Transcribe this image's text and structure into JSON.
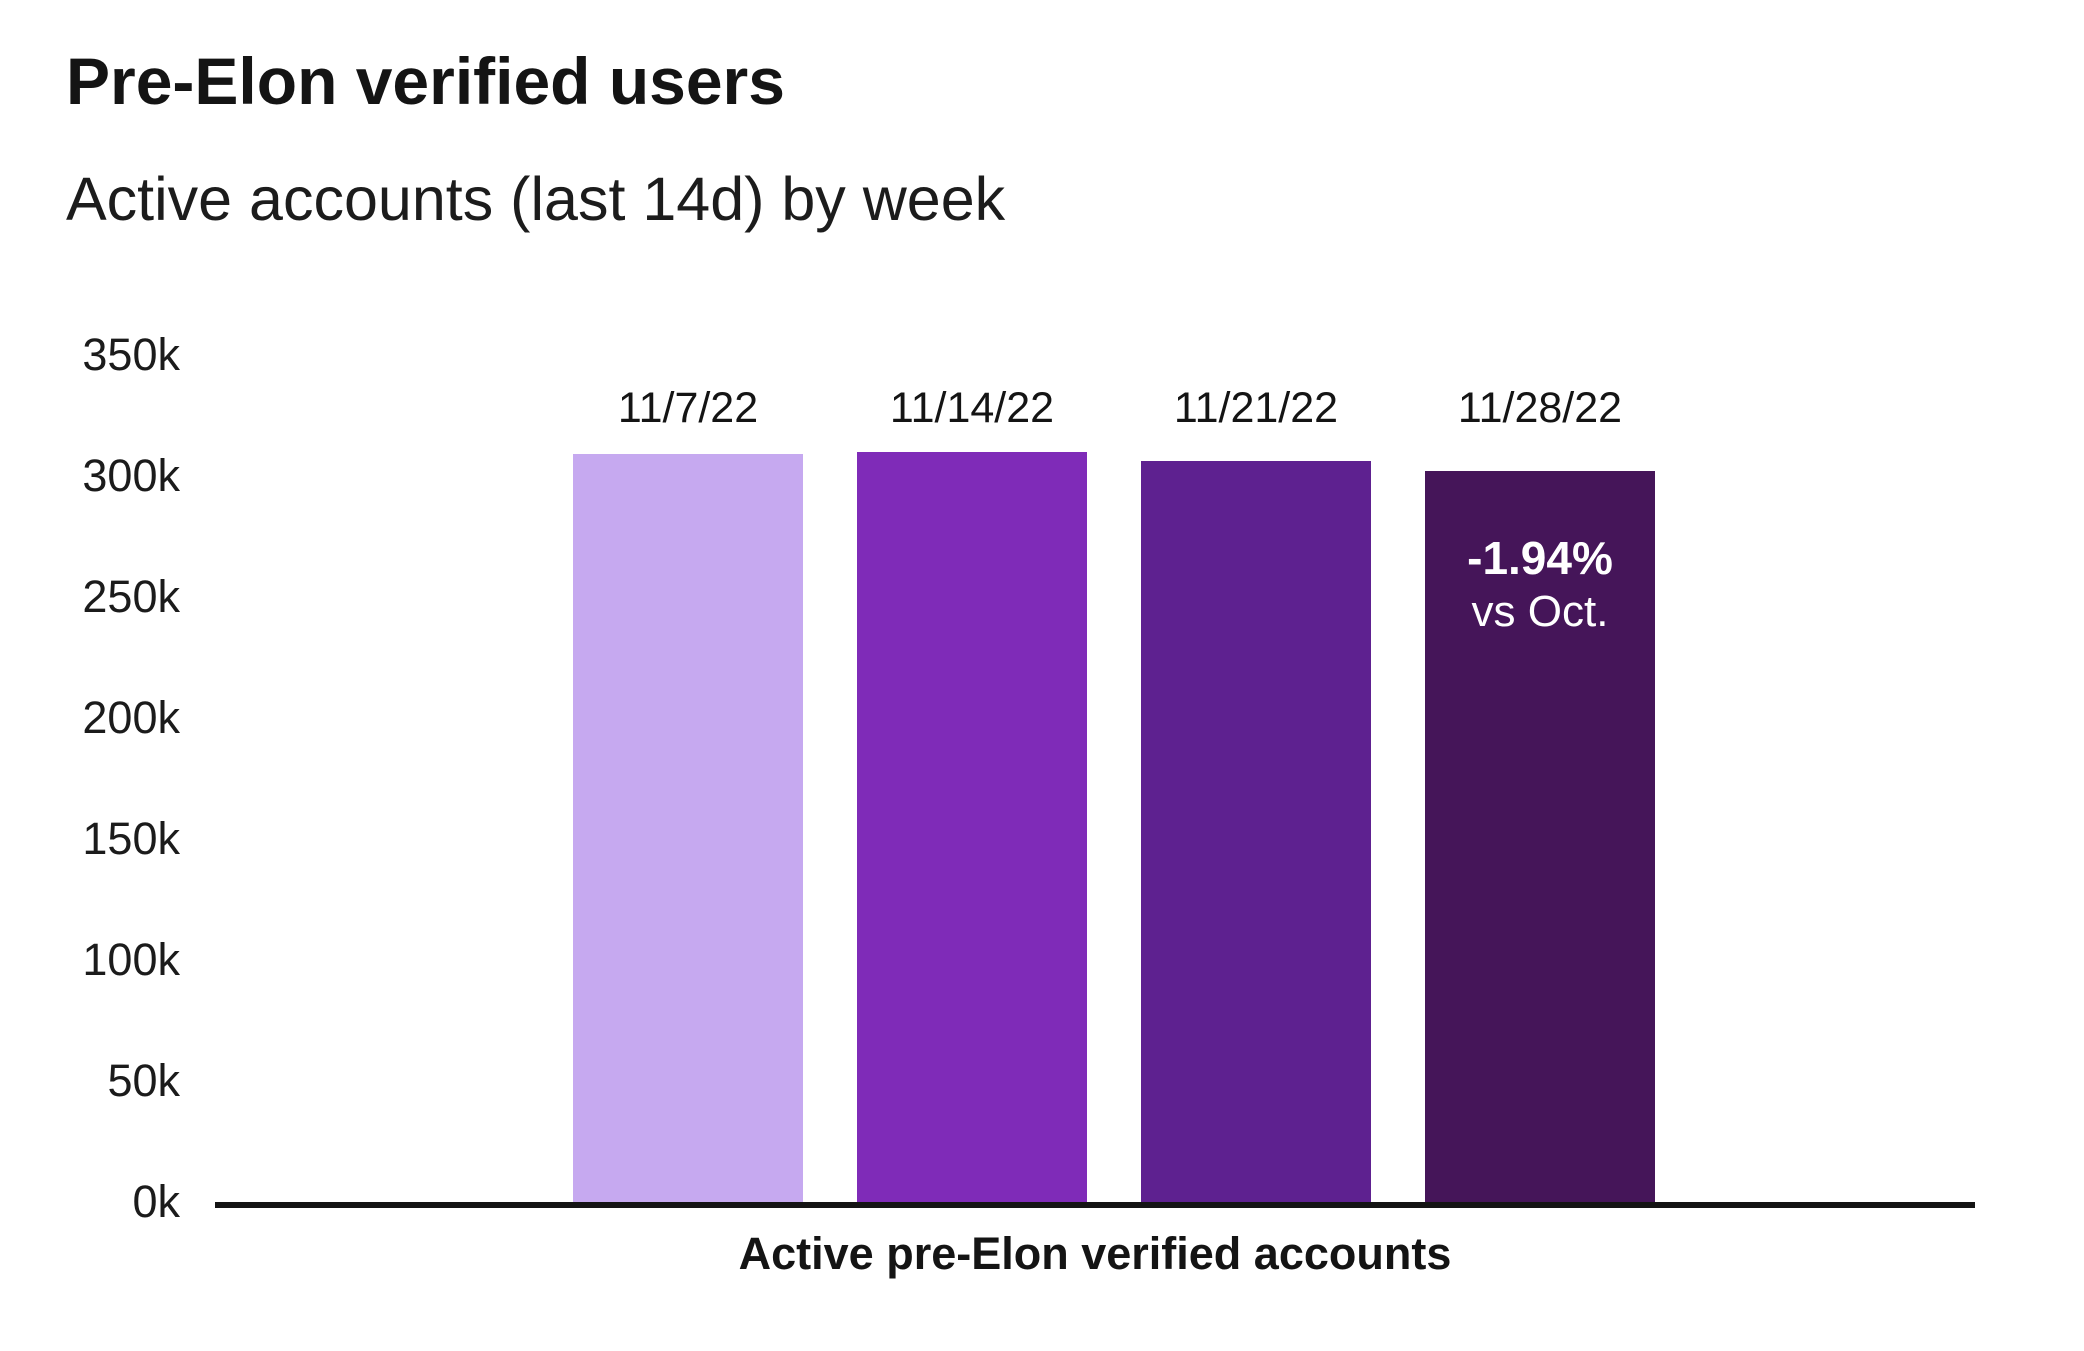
{
  "header": {
    "title": "Pre-Elon verified users",
    "subtitle": "Active accounts (last 14d) by week"
  },
  "chart_data": {
    "type": "bar",
    "categories": [
      "11/7/22",
      "11/14/22",
      "11/21/22",
      "11/28/22"
    ],
    "values": [
      309000,
      310000,
      306000,
      302000
    ],
    "bar_colors": [
      "#C6A9F0",
      "#7F2BB8",
      "#5E2190",
      "#451559"
    ],
    "title": "Pre-Elon verified users",
    "subtitle": "Active accounts (last 14d) by week",
    "xlabel": "Active pre-Elon verified accounts",
    "ylabel": "",
    "ylim": [
      0,
      350000
    ],
    "y_ticks": [
      "350k",
      "300k",
      "250k",
      "200k",
      "150k",
      "100k",
      "50k",
      "0k"
    ],
    "grid": false,
    "legend": false,
    "annotation": {
      "bar_index": 3,
      "line1": "-1.94%",
      "line2": "vs Oct.",
      "text_color": "#FFFFFF"
    }
  },
  "axis": {
    "x_label": "Active pre-Elon verified accounts"
  },
  "colors": {
    "background": "#FFFFFF",
    "text": "#141414",
    "axis_line": "#141414"
  }
}
